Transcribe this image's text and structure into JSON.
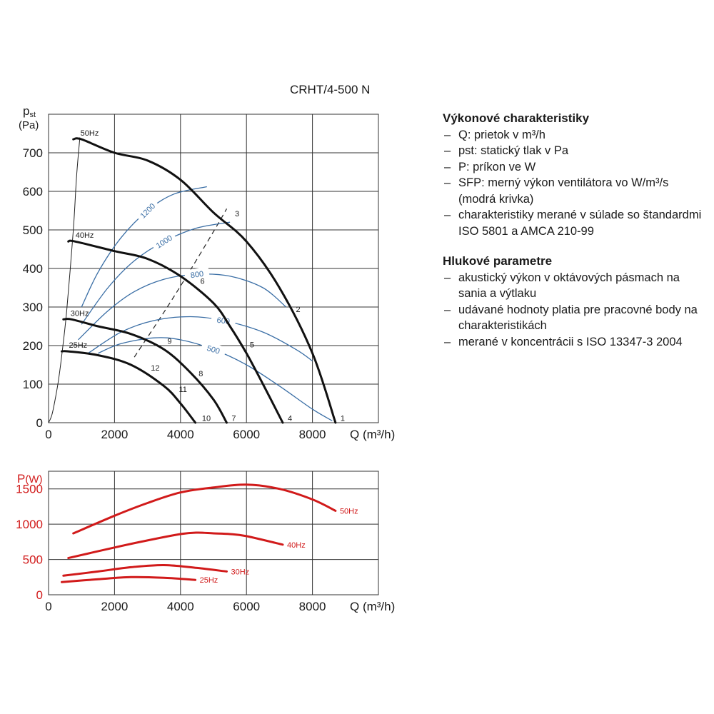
{
  "model": "CRHT/4-500 N",
  "info": {
    "performance_heading": "Výkonové charakteristiky",
    "performance_items": [
      "Q: prietok v m³/h",
      "pst: statický tlak v Pa",
      "P: príkon ve W",
      "SFP: merný výkon ventilátora vo W/m³/s (modrá krivka)",
      "charakteristiky merané v súlade so štandardmi ISO 5801 a AMCA 210-99"
    ],
    "noise_heading": "Hlukové parametre",
    "noise_items": [
      "akustický výkon v oktávových pásmach na sania a výtlaku",
      "udávané hodnoty platia pre pracovné body na charakteristikách",
      "merané v koncentrácii s ISO 13347-3 2004"
    ]
  },
  "colors": {
    "pressure": "#111111",
    "sfp": "#3a6ea5",
    "power": "#d11a1a",
    "grid": "#333333",
    "dashed": "#222222"
  },
  "chart_data": [
    {
      "type": "line",
      "xlabel": "Q (m³/h)",
      "ylabel": "pst (Pa)",
      "xlim": [
        0,
        10000
      ],
      "ylim": [
        0,
        800
      ],
      "xticks": [
        0,
        2000,
        4000,
        6000,
        8000
      ],
      "yticks": [
        0,
        100,
        200,
        300,
        400,
        500,
        600,
        700
      ],
      "grid": true,
      "series": [
        {
          "name": "50Hz",
          "points": [
            [
              750,
              735
            ],
            [
              1000,
              735
            ],
            [
              2000,
              700
            ],
            [
              3000,
              680
            ],
            [
              4000,
              630
            ],
            [
              5000,
              545
            ],
            [
              6000,
              470
            ],
            [
              7000,
              350
            ],
            [
              8000,
              180
            ],
            [
              8700,
              0
            ]
          ]
        },
        {
          "name": "40Hz",
          "points": [
            [
              600,
              470
            ],
            [
              800,
              470
            ],
            [
              2000,
              445
            ],
            [
              3000,
              425
            ],
            [
              4000,
              380
            ],
            [
              5000,
              310
            ],
            [
              5500,
              250
            ],
            [
              6000,
              180
            ],
            [
              6500,
              100
            ],
            [
              7100,
              0
            ]
          ]
        },
        {
          "name": "30Hz",
          "points": [
            [
              450,
              268
            ],
            [
              700,
              268
            ],
            [
              1500,
              250
            ],
            [
              2500,
              230
            ],
            [
              3500,
              190
            ],
            [
              4300,
              130
            ],
            [
              5000,
              60
            ],
            [
              5400,
              0
            ]
          ]
        },
        {
          "name": "25Hz",
          "points": [
            [
              400,
              185
            ],
            [
              600,
              185
            ],
            [
              1500,
              175
            ],
            [
              2500,
              150
            ],
            [
              3500,
              95
            ],
            [
              4000,
              50
            ],
            [
              4450,
              0
            ]
          ]
        }
      ],
      "sfp_curves": [
        {
          "label": "1200",
          "points": [
            [
              1000,
              300
            ],
            [
              1500,
              390
            ],
            [
              2200,
              480
            ],
            [
              3000,
              550
            ],
            [
              3800,
              593
            ],
            [
              4800,
              612
            ]
          ]
        },
        {
          "label": "1000",
          "points": [
            [
              1000,
              255
            ],
            [
              1800,
              350
            ],
            [
              2600,
              420
            ],
            [
              3500,
              470
            ],
            [
              4500,
              505
            ],
            [
              5500,
              520
            ]
          ]
        },
        {
          "label": "800",
          "points": [
            [
              900,
              215
            ],
            [
              1800,
              290
            ],
            [
              2600,
              340
            ],
            [
              3500,
              372
            ],
            [
              4500,
              385
            ],
            [
              5500,
              380
            ],
            [
              6500,
              350
            ],
            [
              7200,
              300
            ]
          ]
        },
        {
          "label": "600",
          "points": [
            [
              1200,
              180
            ],
            [
              2200,
              235
            ],
            [
              3200,
              265
            ],
            [
              4300,
              275
            ],
            [
              5300,
              265
            ],
            [
              6500,
              235
            ],
            [
              7500,
              190
            ],
            [
              8000,
              160
            ]
          ]
        },
        {
          "label": "500",
          "points": [
            [
              1500,
              180
            ],
            [
              2200,
              205
            ],
            [
              3200,
              220
            ],
            [
              4000,
              215
            ],
            [
              5000,
              190
            ],
            [
              6000,
              150
            ],
            [
              7000,
              95
            ],
            [
              8000,
              35
            ],
            [
              8600,
              5
            ]
          ]
        }
      ],
      "system_curves": [
        {
          "style": "solid",
          "points": [
            [
              0,
              0
            ],
            [
              100,
              20
            ],
            [
              200,
              60
            ],
            [
              300,
              110
            ],
            [
              400,
              175
            ],
            [
              550,
              290
            ],
            [
              750,
              500
            ],
            [
              850,
              640
            ],
            [
              950,
              740
            ]
          ]
        },
        {
          "style": "dashed",
          "points": [
            [
              2600,
              170
            ],
            [
              3600,
              300
            ],
            [
              4400,
              410
            ],
            [
              5100,
              510
            ],
            [
              5400,
              555
            ]
          ]
        }
      ],
      "point_labels": [
        {
          "label": "1",
          "x": 8850,
          "y": 5
        },
        {
          "label": "2",
          "x": 7500,
          "y": 287
        },
        {
          "label": "3",
          "x": 5650,
          "y": 535
        },
        {
          "label": "4",
          "x": 7250,
          "y": 5
        },
        {
          "label": "5",
          "x": 6100,
          "y": 195
        },
        {
          "label": "6",
          "x": 4600,
          "y": 360
        },
        {
          "label": "7",
          "x": 5550,
          "y": 5
        },
        {
          "label": "8",
          "x": 4550,
          "y": 120
        },
        {
          "label": "9",
          "x": 3600,
          "y": 205
        },
        {
          "label": "10",
          "x": 4650,
          "y": 5
        },
        {
          "label": "11",
          "x": 3950,
          "y": 80
        },
        {
          "label": "12",
          "x": 3100,
          "y": 135
        }
      ]
    },
    {
      "type": "line",
      "xlabel": "Q (m³/h)",
      "ylabel": "P(W)",
      "xlim": [
        0,
        10000
      ],
      "ylim": [
        0,
        1750
      ],
      "xticks": [
        0,
        2000,
        4000,
        6000,
        8000
      ],
      "yticks": [
        0,
        500,
        1000,
        1500
      ],
      "grid": true,
      "series": [
        {
          "name": "50Hz",
          "points": [
            [
              750,
              870
            ],
            [
              2000,
              1120
            ],
            [
              3000,
              1300
            ],
            [
              4000,
              1450
            ],
            [
              5000,
              1520
            ],
            [
              6000,
              1560
            ],
            [
              7000,
              1500
            ],
            [
              8000,
              1350
            ],
            [
              8700,
              1190
            ]
          ]
        },
        {
          "name": "40Hz",
          "points": [
            [
              600,
              520
            ],
            [
              2000,
              670
            ],
            [
              3000,
              770
            ],
            [
              4000,
              860
            ],
            [
              4500,
              880
            ],
            [
              5000,
              870
            ],
            [
              5500,
              860
            ],
            [
              6000,
              830
            ],
            [
              7100,
              710
            ]
          ]
        },
        {
          "name": "30Hz",
          "points": [
            [
              450,
              270
            ],
            [
              1500,
              330
            ],
            [
              2500,
              390
            ],
            [
              3500,
              420
            ],
            [
              4500,
              380
            ],
            [
              5400,
              330
            ]
          ]
        },
        {
          "name": "25Hz",
          "points": [
            [
              400,
              180
            ],
            [
              1500,
              220
            ],
            [
              2500,
              250
            ],
            [
              3500,
              240
            ],
            [
              4450,
              210
            ]
          ]
        }
      ]
    }
  ]
}
